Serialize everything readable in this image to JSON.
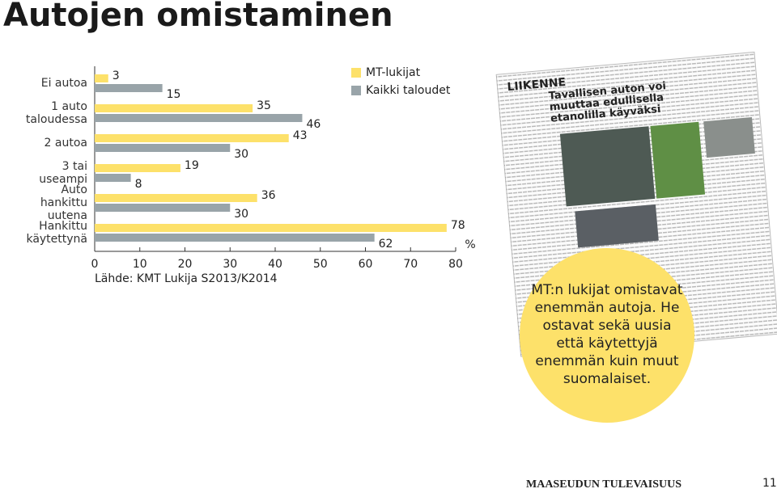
{
  "title": "Autojen omistaminen",
  "chart_data": {
    "type": "bar",
    "orientation": "horizontal",
    "categories": [
      "Ei autoa",
      "1 auto\ntaloudessa",
      "2 autoa",
      "3 tai\nuseampi",
      "Auto\nhankittu uutena",
      "Hankittu\nkäytettynä"
    ],
    "series": [
      {
        "name": "MT-lukijat",
        "color": "#fde16a",
        "values": [
          3,
          35,
          43,
          19,
          36,
          78
        ]
      },
      {
        "name": "Kaikki taloudet",
        "color": "#99a4a9",
        "values": [
          15,
          46,
          30,
          8,
          30,
          62
        ]
      }
    ],
    "xlim": [
      0,
      80
    ],
    "xticks": [
      0,
      10,
      20,
      30,
      40,
      50,
      60,
      70,
      80
    ],
    "unit": "%",
    "source": "Lähde: KMT Lukija S2013/K2014"
  },
  "article": {
    "section": "LIIKENNE",
    "headline": "Tavallisen auton voi muuttaa edullisella etanolilla käyväksi"
  },
  "callout": "MT:n lukijat omistavat enemmän autoja. He ostavat sekä uusia että käytettyjä enemmän kuin muut suomalaiset.",
  "footer": {
    "publication": "MAASEUDUN TULEVAISUUS",
    "page": "11"
  }
}
